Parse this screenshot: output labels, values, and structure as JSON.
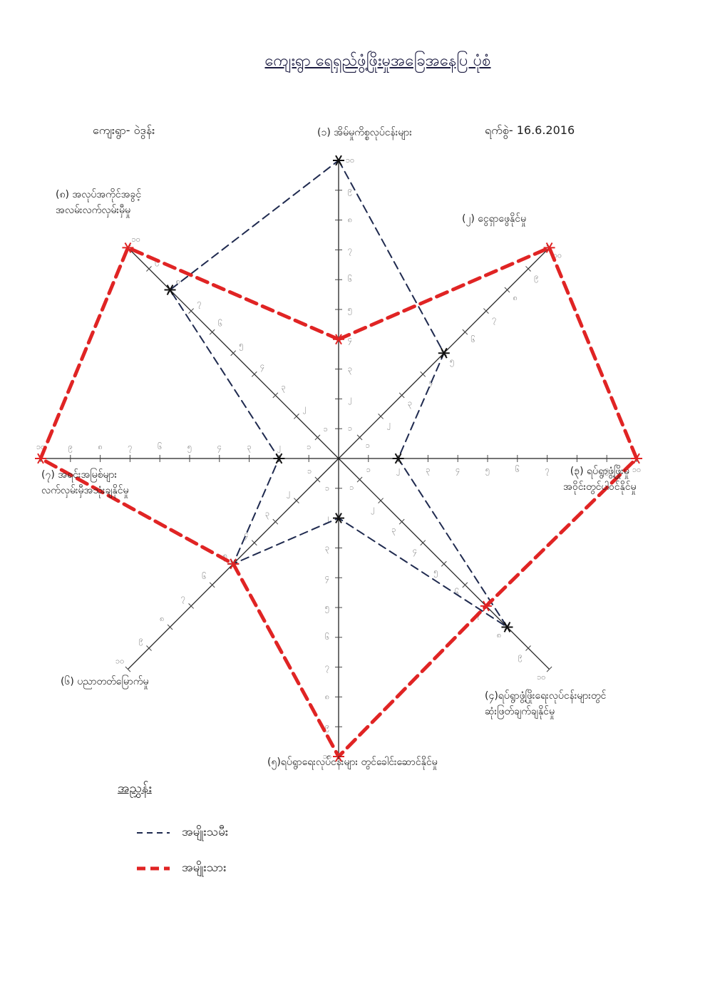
{
  "chart_data": {
    "type": "radar",
    "title": "ကျေးရွာ ရေရှည်ဖွံ့ဖြိုးမှုအခြေအနေပြ ပုံစံ",
    "village": "ကျေးရွာ- ဝဲဒွန်း",
    "date": "ရက်စွဲ- 16.6.2016",
    "categories": [
      "(၁) အိမ်မှုကိစ္စလုပ်ငန်းများ",
      "(၂) ငွေရှာဖွေနိုင်မှု",
      "(၃) ရပ်ရွာဖွံ့ဖြိုးမှု\nအဝိုင်းတွင်ပါဝင်နိုင်မှု",
      "(၄)ရပ်ရွာဖွံ့ဖြိုးရေးလုပ်ငန်းများတွင်\nဆုံးဖြတ်ချက်ချနိုင်မှု",
      "(၅)ရပ်ရွာရေးလုပ်ငန်းများ တွင်ခေါင်းဆောင်နိုင်မှု",
      "(၆) ပညာတတ်မြောက်မှု",
      "(၇) အရင်းအမြစ်များ\nလက်လှမ်းမှီအသုံးချနိုင်မှု",
      "(၈) အလုပ်အကိုင်အခွင့်\nအလမ်းလက်လှမ်းမှီမှု"
    ],
    "series": [
      {
        "name": "အမျိုးသမီး",
        "color": "#1f2a4f",
        "values": [
          10,
          5,
          2,
          8,
          2,
          5,
          2,
          8
        ]
      },
      {
        "name": "အမျိုးသား",
        "color": "#e02424",
        "values": [
          4,
          10,
          10,
          7,
          10,
          5,
          10,
          10
        ]
      }
    ],
    "rlim": [
      0,
      10
    ],
    "rticks": [
      {
        "value": 1,
        "label": "၁"
      },
      {
        "value": 2,
        "label": "၂"
      },
      {
        "value": 3,
        "label": "၃"
      },
      {
        "value": 4,
        "label": "၄"
      },
      {
        "value": 5,
        "label": "၅"
      },
      {
        "value": 6,
        "label": "၆"
      },
      {
        "value": 7,
        "label": "၇"
      },
      {
        "value": 8,
        "label": "၈"
      },
      {
        "value": 9,
        "label": "၉"
      },
      {
        "value": 10,
        "label": "၁၀"
      }
    ],
    "legend_title": "အညွှန်း"
  }
}
